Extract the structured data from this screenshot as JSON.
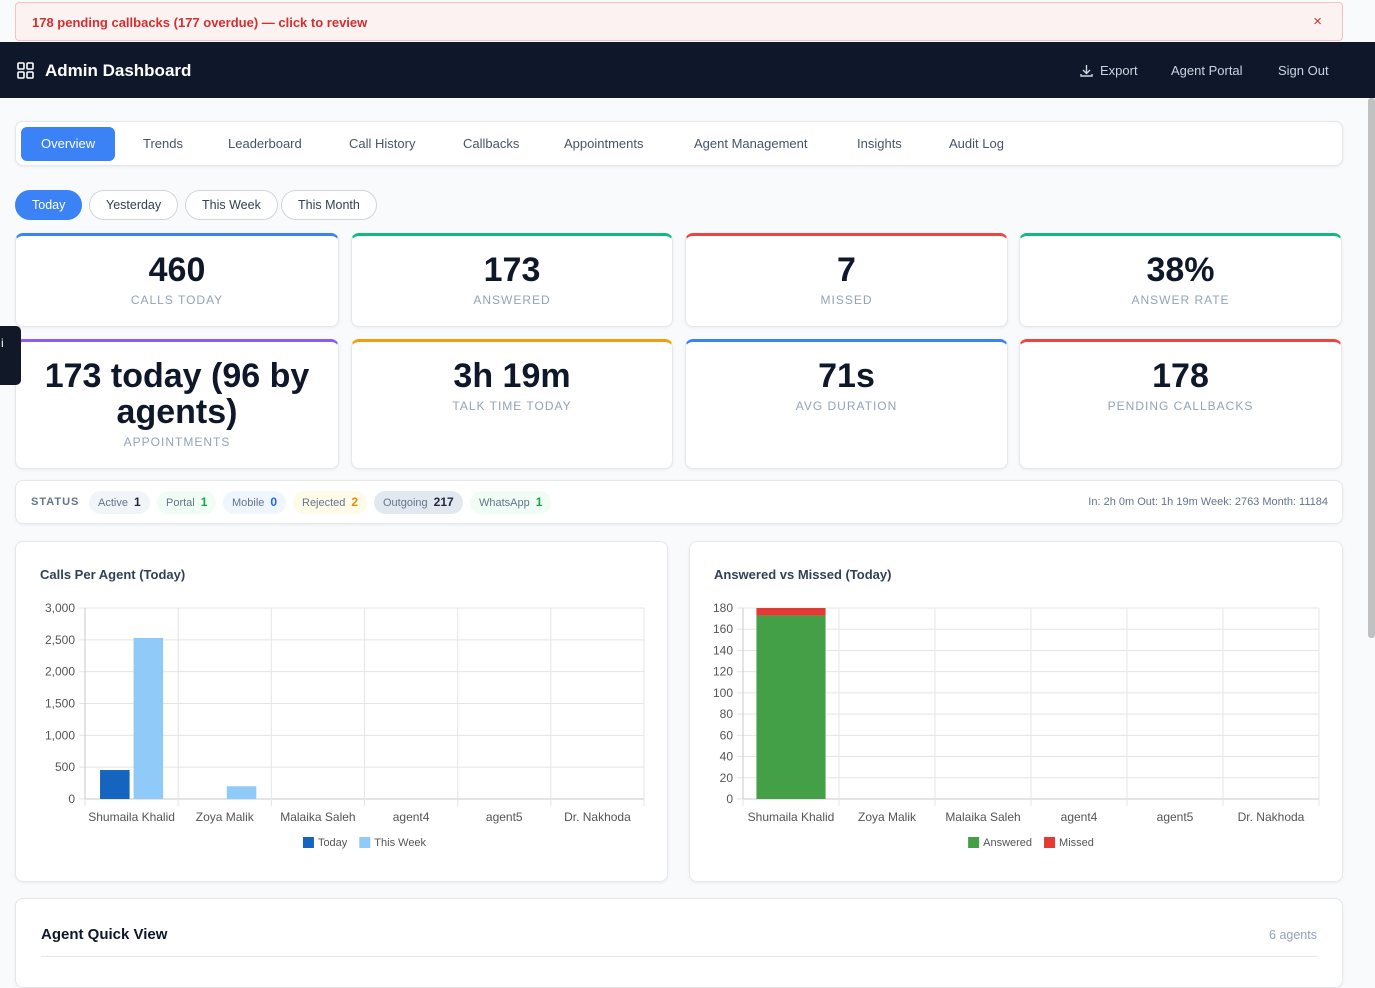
{
  "side_tab": "i",
  "alert": {
    "text": "178 pending callbacks (177 overdue) — click to review",
    "close": "×"
  },
  "header": {
    "title": "Admin Dashboard",
    "actions": [
      "Export",
      "Agent Portal",
      "Sign Out"
    ]
  },
  "tabs": {
    "items": [
      "Overview",
      "Trends",
      "Leaderboard",
      "Call History",
      "Callbacks",
      "Appointments",
      "Agent Management",
      "Insights",
      "Audit Log"
    ],
    "active": 0
  },
  "periods": {
    "items": [
      "Today",
      "Yesterday",
      "This Week",
      "This Month"
    ],
    "active": 0
  },
  "stats": [
    {
      "value": "460",
      "label": "CALLS TODAY",
      "color": "#3b82f6"
    },
    {
      "value": "173",
      "label": "ANSWERED",
      "color": "#10b981"
    },
    {
      "value": "7",
      "label": "MISSED",
      "color": "#ef4444"
    },
    {
      "value": "38%",
      "label": "ANSWER RATE",
      "color": "#10b981"
    },
    {
      "value": "173 today (96 by agents)",
      "label": "APPOINTMENTS",
      "color": "#8b5cf6"
    },
    {
      "value": "3h 19m",
      "label": "TALK TIME TODAY",
      "color": "#f59e0b"
    },
    {
      "value": "71s",
      "label": "AVG DURATION",
      "color": "#3b82f6"
    },
    {
      "value": "178",
      "label": "PENDING CALLBACKS",
      "color": "#ef4444"
    }
  ],
  "status": {
    "label": "STATUS",
    "pills": [
      {
        "name": "Active",
        "count": 1,
        "color": "#1e293b",
        "bg": "#f1f5f9"
      },
      {
        "name": "Portal",
        "count": 1,
        "color": "#16a34a",
        "bg": "#f0fdf4"
      },
      {
        "name": "Mobile",
        "count": 0,
        "color": "#2563eb",
        "bg": "#eff6ff"
      },
      {
        "name": "Rejected",
        "count": 2,
        "color": "#ea8a0c",
        "bg": "#fefce8"
      },
      {
        "name": "Outgoing",
        "count": 217,
        "color": "#1e293b",
        "bg": "#e2e8f0"
      },
      {
        "name": "WhatsApp",
        "count": 1,
        "color": "#16a34a",
        "bg": "#f0fdf4"
      }
    ],
    "summary": "In: 2h 0m Out: 1h 19m Week: 2763 Month: 11184"
  },
  "chart_data": [
    {
      "type": "bar",
      "title": "Calls Per Agent (Today)",
      "categories": [
        "Shumaila Khalid",
        "Zoya Malik",
        "Malaika Saleh",
        "agent4",
        "agent5",
        "Dr. Nakhoda"
      ],
      "series": [
        {
          "name": "Today",
          "color": "#1565c0",
          "values": [
            455,
            0,
            0,
            0,
            0,
            0
          ]
        },
        {
          "name": "This Week",
          "color": "#90caf9",
          "values": [
            2530,
            200,
            0,
            0,
            0,
            0
          ]
        }
      ],
      "ylim": [
        0,
        3000
      ],
      "yticks": [
        0,
        500,
        {
          "value": 1000,
          "label": "1,000"
        },
        {
          "value": 1500,
          "label": "1,500"
        },
        {
          "value": 2000,
          "label": "2,000"
        },
        {
          "value": 2500,
          "label": "2,500"
        },
        {
          "value": 3000,
          "label": "3,000"
        }
      ],
      "grid": true,
      "stacked": false,
      "legend": "bottom"
    },
    {
      "type": "bar",
      "title": "Answered vs Missed (Today)",
      "categories": [
        "Shumaila Khalid",
        "Zoya Malik",
        "Malaika Saleh",
        "agent4",
        "agent5",
        "Dr. Nakhoda"
      ],
      "series": [
        {
          "name": "Answered",
          "color": "#43a047",
          "values": [
            173,
            0,
            0,
            0,
            0,
            0
          ]
        },
        {
          "name": "Missed",
          "color": "#e53935",
          "values": [
            7,
            0,
            0,
            0,
            0,
            0
          ]
        }
      ],
      "ylim": [
        0,
        180
      ],
      "yticks": [
        0,
        20,
        40,
        60,
        80,
        100,
        120,
        140,
        160,
        180
      ],
      "grid": true,
      "stacked": true,
      "legend": "bottom"
    }
  ],
  "agent_quick_view": {
    "title": "Agent Quick View",
    "count": "6 agents"
  }
}
